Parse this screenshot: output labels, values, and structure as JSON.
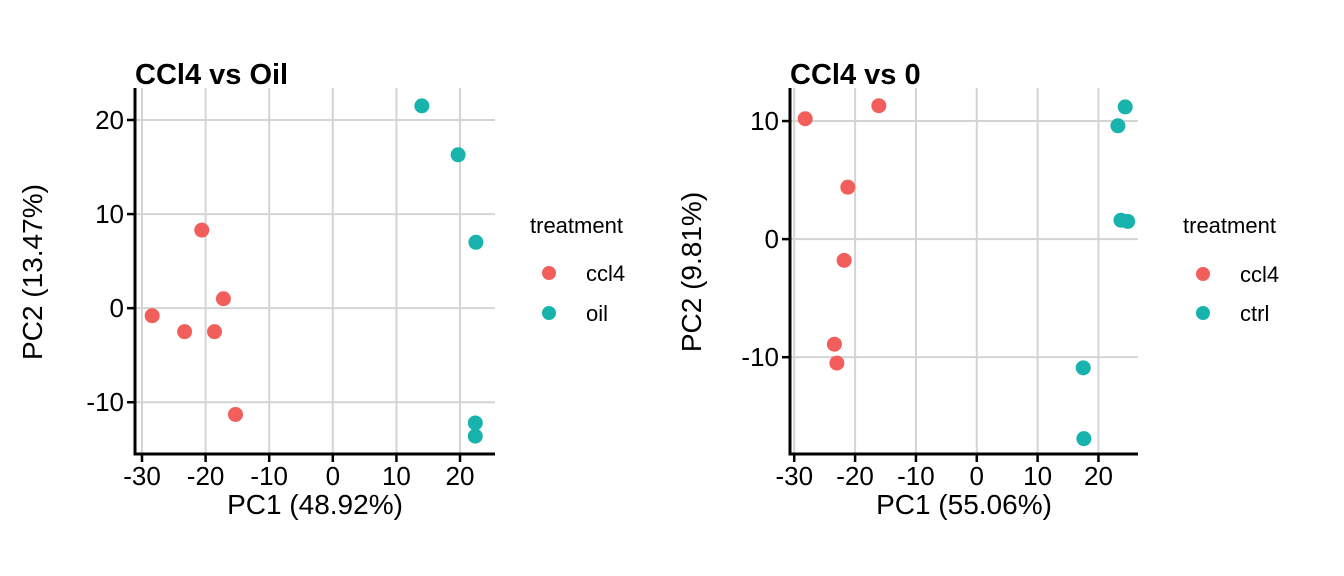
{
  "figure": {
    "background": "#ffffff",
    "text_color": "#000000"
  },
  "chart_data": [
    {
      "type": "scatter",
      "title": "CCl4 vs Oil",
      "xlabel": "PC1 (48.92%)",
      "ylabel": "PC2 (13.47%)",
      "legend_title": "treatment",
      "legend_position": "right",
      "grid": true,
      "xlim": [
        -31.1,
        25.5
      ],
      "ylim": [
        -15.5,
        23.4
      ],
      "x_ticks": [
        -30,
        -20,
        -10,
        0,
        10,
        20
      ],
      "y_ticks": [
        -10,
        0,
        10,
        20
      ],
      "series": [
        {
          "name": "ccl4",
          "color": "#F15E5C",
          "points": [
            [
              -20.6,
              8.3
            ],
            [
              -17.2,
              1.0
            ],
            [
              -28.4,
              -0.8
            ],
            [
              -23.3,
              -2.5
            ],
            [
              -18.6,
              -2.5
            ],
            [
              -15.3,
              -11.3
            ]
          ]
        },
        {
          "name": "oil",
          "color": "#17B3AC",
          "points": [
            [
              14.0,
              21.5
            ],
            [
              19.7,
              16.3
            ],
            [
              22.5,
              7.0
            ],
            [
              22.4,
              -12.2
            ],
            [
              22.4,
              -13.6
            ]
          ]
        }
      ]
    },
    {
      "type": "scatter",
      "title": "CCl4 vs 0",
      "xlabel": "PC1 (55.06%)",
      "ylabel": "PC2 (9.81%)",
      "legend_title": "treatment",
      "legend_position": "right",
      "grid": true,
      "xlim": [
        -30.7,
        26.5
      ],
      "ylim": [
        -18.2,
        12.8
      ],
      "x_ticks": [
        -30,
        -20,
        -10,
        0,
        10,
        20
      ],
      "y_ticks": [
        -10,
        0,
        10
      ],
      "series": [
        {
          "name": "ccl4",
          "color": "#F15E5C",
          "points": [
            [
              -28.2,
              10.2
            ],
            [
              -16.1,
              11.3
            ],
            [
              -21.2,
              4.4
            ],
            [
              -21.8,
              -1.8
            ],
            [
              -23.4,
              -8.9
            ],
            [
              -23.0,
              -10.5
            ]
          ]
        },
        {
          "name": "ctrl",
          "color": "#17B3AC",
          "points": [
            [
              24.4,
              11.2
            ],
            [
              23.2,
              9.6
            ],
            [
              23.7,
              1.6
            ],
            [
              24.8,
              1.5
            ],
            [
              17.5,
              -10.9
            ],
            [
              17.6,
              -16.9
            ]
          ]
        }
      ]
    }
  ]
}
